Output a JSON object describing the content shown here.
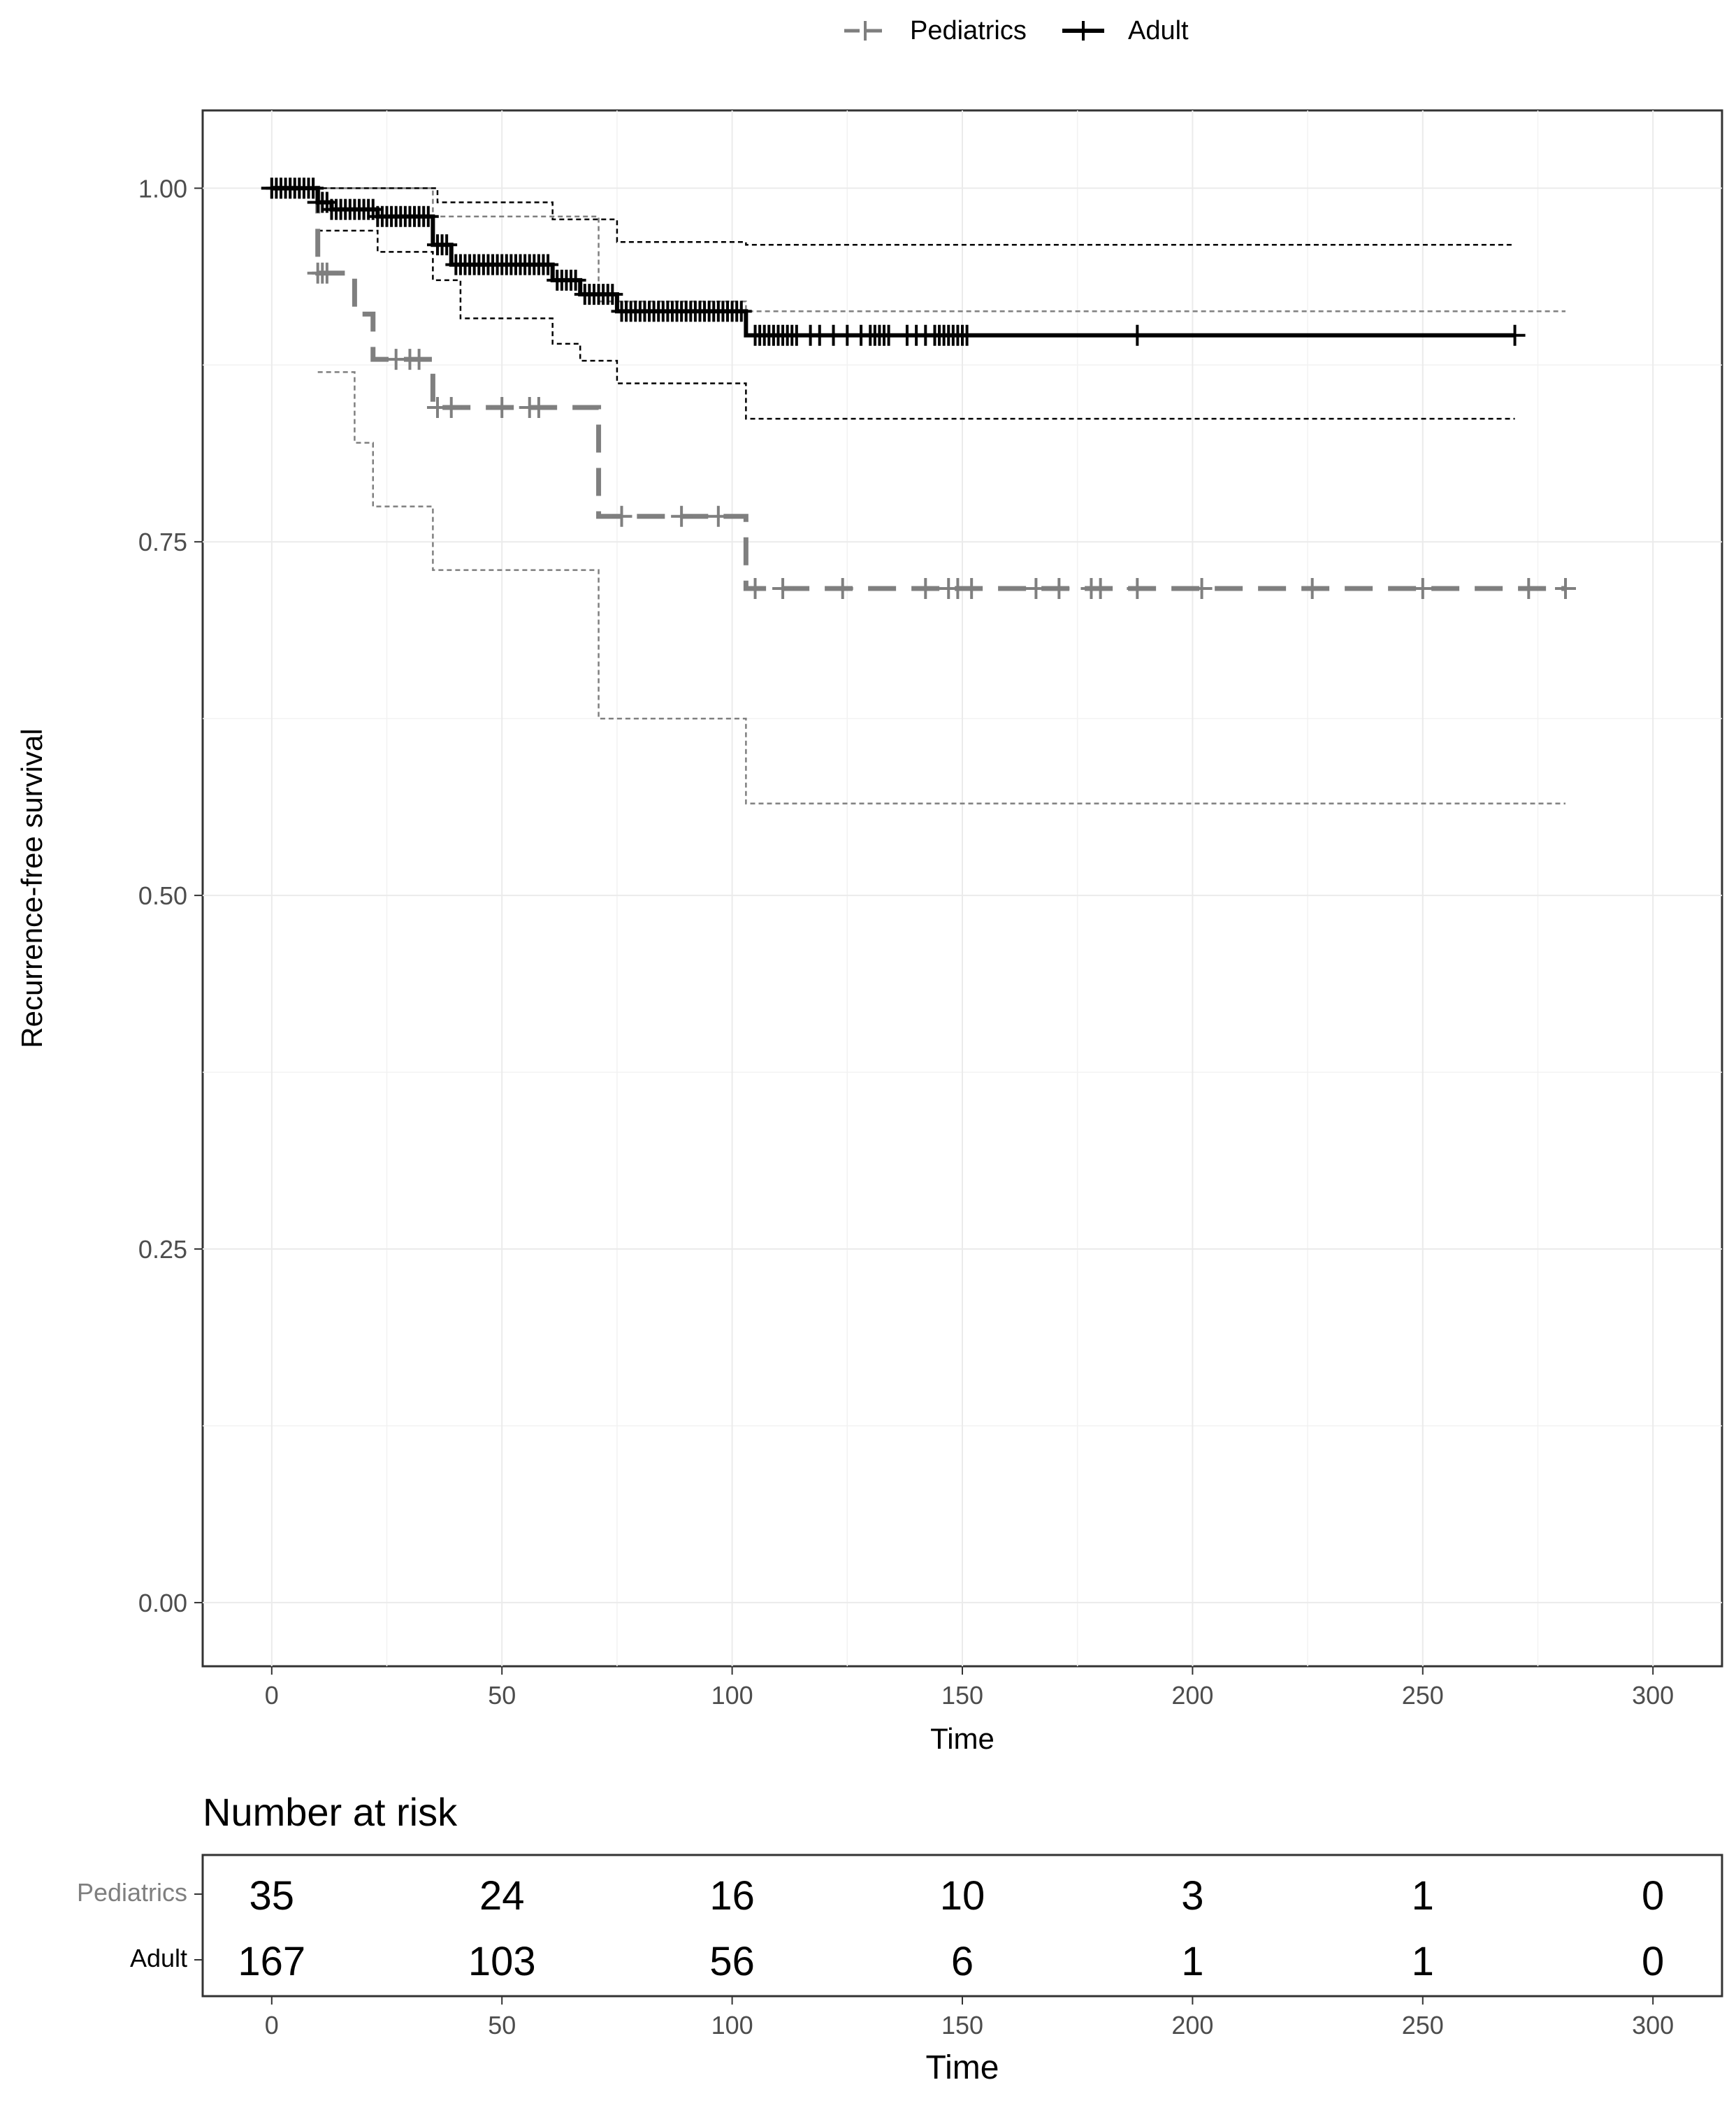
{
  "chart_data": {
    "type": "kaplan-meier",
    "legend": {
      "placement": "top-center",
      "entries": [
        {
          "name": "Pediatrics",
          "color": "#7f7f7f",
          "style": "dashed"
        },
        {
          "name": "Adult",
          "color": "#000000",
          "style": "solid"
        }
      ]
    },
    "main": {
      "xlabel": "Time",
      "ylabel": "Recurrence-free survival",
      "xlim": [
        -15,
        315
      ],
      "ylim": [
        -0.045,
        1.055
      ],
      "xticks": [
        0,
        50,
        100,
        150,
        200,
        250,
        300
      ],
      "yticks": [
        0,
        0.25,
        0.5,
        0.75,
        1.0
      ],
      "ytick_labels": [
        "0.00",
        "0.25",
        "0.50",
        "0.75",
        "1.00"
      ],
      "grid": true
    },
    "series": [
      {
        "name": "Pediatrics",
        "color": "#7f7f7f",
        "steps": [
          [
            0,
            1.0
          ],
          [
            10,
            0.94
          ],
          [
            18,
            0.911
          ],
          [
            22,
            0.879
          ],
          [
            35,
            0.845
          ],
          [
            71,
            0.768
          ],
          [
            103,
            0.717
          ],
          [
            281,
            0.717
          ]
        ],
        "ci_upper": [
          [
            10,
            1.0
          ],
          [
            35,
            0.98
          ],
          [
            71,
            0.92
          ],
          [
            103,
            0.913
          ],
          [
            281,
            0.913
          ]
        ],
        "ci_lower": [
          [
            10,
            0.87
          ],
          [
            18,
            0.82
          ],
          [
            22,
            0.775
          ],
          [
            35,
            0.73
          ],
          [
            71,
            0.625
          ],
          [
            103,
            0.565
          ],
          [
            281,
            0.565
          ]
        ],
        "censor": [
          0,
          2,
          4,
          6,
          7,
          9,
          10,
          11,
          12,
          27,
          30,
          32,
          36,
          39,
          50,
          56,
          58,
          76,
          89,
          97,
          105,
          111,
          124,
          142,
          147,
          149,
          152,
          166,
          171,
          178,
          180,
          188,
          202,
          226,
          250,
          273,
          281
        ]
      },
      {
        "name": "Adult",
        "color": "#000000",
        "steps": [
          [
            0,
            1.0
          ],
          [
            10,
            0.99
          ],
          [
            13,
            0.985
          ],
          [
            23,
            0.98
          ],
          [
            35,
            0.96
          ],
          [
            39,
            0.946
          ],
          [
            61,
            0.935
          ],
          [
            67,
            0.925
          ],
          [
            75,
            0.913
          ],
          [
            103,
            0.896
          ],
          [
            270,
            0.896
          ]
        ],
        "ci_upper": [
          [
            0,
            1.0
          ],
          [
            36,
            0.99
          ],
          [
            61,
            0.978
          ],
          [
            75,
            0.962
          ],
          [
            103,
            0.96
          ],
          [
            270,
            0.96
          ]
        ],
        "ci_lower": [
          [
            10,
            0.97
          ],
          [
            23,
            0.955
          ],
          [
            35,
            0.935
          ],
          [
            41,
            0.908
          ],
          [
            61,
            0.89
          ],
          [
            67,
            0.878
          ],
          [
            75,
            0.862
          ],
          [
            103,
            0.837
          ],
          [
            270,
            0.837
          ]
        ],
        "censor": [
          0,
          1,
          2,
          3,
          4,
          5,
          6,
          7,
          8,
          9,
          10,
          11,
          12,
          13,
          14,
          15,
          16,
          17,
          18,
          19,
          20,
          21,
          22,
          23,
          24,
          25,
          26,
          27,
          28,
          29,
          30,
          31,
          32,
          33,
          34,
          36,
          37,
          38,
          40,
          41,
          42,
          43,
          44,
          45,
          46,
          47,
          48,
          49,
          50,
          51,
          52,
          53,
          54,
          55,
          56,
          57,
          58,
          59,
          60,
          62,
          63,
          64,
          65,
          66,
          68,
          69,
          70,
          71,
          72,
          73,
          74,
          76,
          77,
          78,
          79,
          80,
          81,
          82,
          83,
          84,
          85,
          86,
          87,
          88,
          89,
          90,
          91,
          92,
          93,
          94,
          95,
          96,
          97,
          98,
          99,
          100,
          101,
          102,
          105,
          106,
          107,
          108,
          109,
          110,
          111,
          112,
          113,
          114,
          117,
          119,
          122,
          125,
          128,
          130,
          131,
          132,
          133,
          134,
          138,
          140,
          142,
          144,
          145,
          146,
          147,
          148,
          149,
          150,
          151,
          188,
          270
        ]
      }
    ],
    "risk_table": {
      "title": "Number at risk",
      "xlabel": "Time",
      "times": [
        0,
        50,
        100,
        150,
        200,
        250,
        300
      ],
      "rows": [
        {
          "name": "Pediatrics",
          "color": "#7f7f7f",
          "values": [
            35,
            24,
            16,
            10,
            3,
            1,
            0
          ]
        },
        {
          "name": "Adult",
          "color": "#000000",
          "values": [
            167,
            103,
            56,
            6,
            1,
            1,
            0
          ]
        }
      ]
    }
  }
}
